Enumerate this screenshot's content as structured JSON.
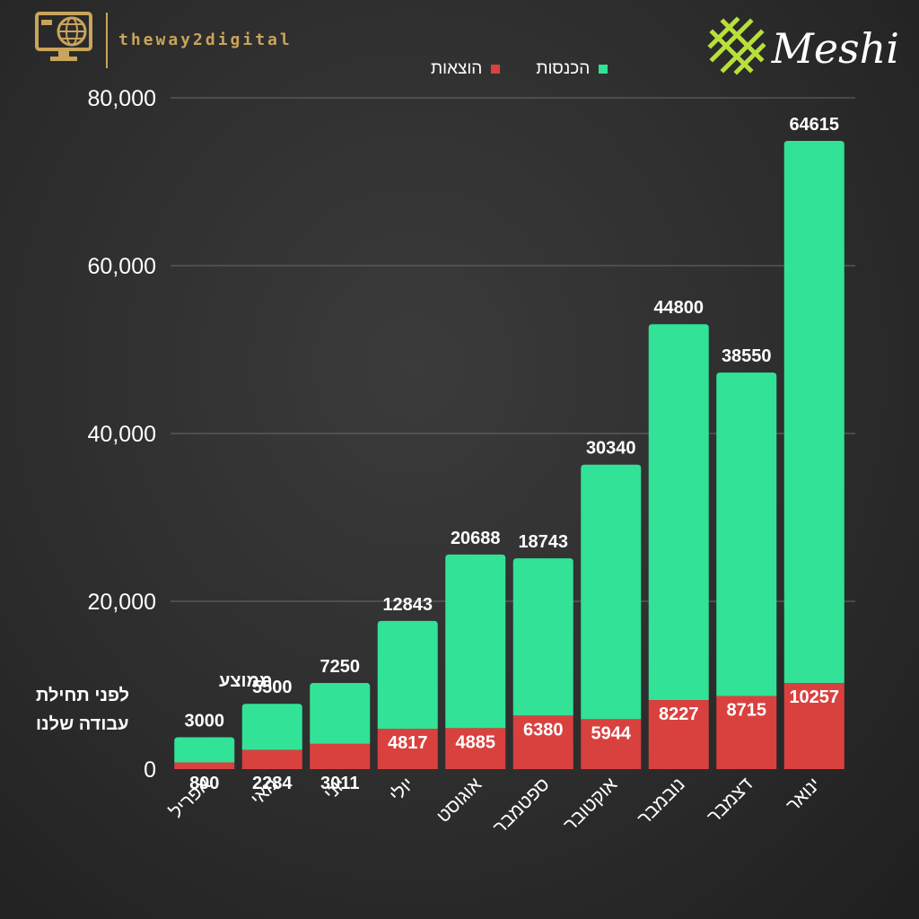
{
  "branding": {
    "left_text": "theway2digital",
    "right_text": "Meshi"
  },
  "colors": {
    "income": "#31e297",
    "expenses": "#d9413f",
    "grid": "#6a6a6a",
    "text": "#ffffff",
    "gold": "#c9a45c",
    "logo_green": "#b8e03a"
  },
  "icons": {
    "left_logo": "computer-monitor-globe-icon",
    "right_logo": "woven-lattice-icon"
  },
  "annotation": {
    "line1": "ממוצע",
    "line2": "לפני תחילת",
    "line3": "עבודה שלנו"
  },
  "chart_data": {
    "type": "bar",
    "stacked": true,
    "categories": [
      "אפריל",
      "מאי",
      "יוני",
      "יולי",
      "אוגוסט",
      "ספטמבר",
      "אוקטובר",
      "נובמבר",
      "דצמבר",
      "ינואר"
    ],
    "series": [
      {
        "name": "הוצאות",
        "values": [
          800,
          2284,
          3011,
          4817,
          4885,
          6380,
          5944,
          8227,
          8715,
          10257
        ],
        "color": "#d9413f"
      },
      {
        "name": "הכנסות",
        "values": [
          3000,
          5500,
          7250,
          12843,
          20688,
          18743,
          30340,
          44800,
          38550,
          64615
        ],
        "color": "#31e297"
      }
    ],
    "ylim": [
      0,
      80000
    ],
    "yticks": [
      0,
      20000,
      40000,
      60000,
      80000
    ],
    "ytick_labels": [
      "0",
      "20,000",
      "40,000",
      "60,000",
      "80,000"
    ],
    "grid": true,
    "legend": "top-center",
    "title": "",
    "xlabel": "",
    "ylabel": ""
  }
}
